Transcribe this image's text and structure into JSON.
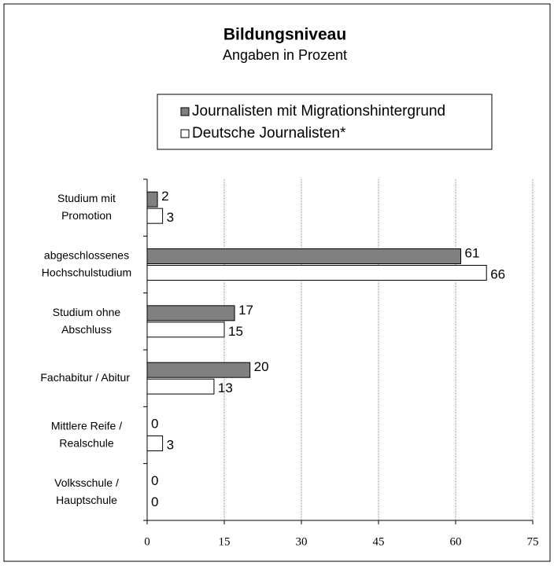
{
  "chart_data": {
    "type": "hbar",
    "title": "Bildungsniveau",
    "subtitle": "Angaben in Prozent",
    "categories": [
      "Studium mit\nPromotion",
      "abgeschlossenes\nHochschulstudium",
      "Studium ohne\nAbschluss",
      "Fachabitur / Abitur",
      "Mittlere Reife /\nRealschule",
      "Volksschule /\nHauptschule"
    ],
    "series": [
      {
        "name": "Journalisten mit Migrationshintergrund",
        "color": "#808080",
        "values": [
          2,
          61,
          17,
          20,
          0,
          0
        ]
      },
      {
        "name": "Deutsche Journalisten*",
        "color": "#ffffff",
        "values": [
          3,
          66,
          15,
          13,
          3,
          0
        ]
      }
    ],
    "xlim": [
      0,
      75
    ],
    "xticks": [
      0,
      15,
      30,
      45,
      60,
      75
    ],
    "grid": true,
    "legend": "top"
  }
}
